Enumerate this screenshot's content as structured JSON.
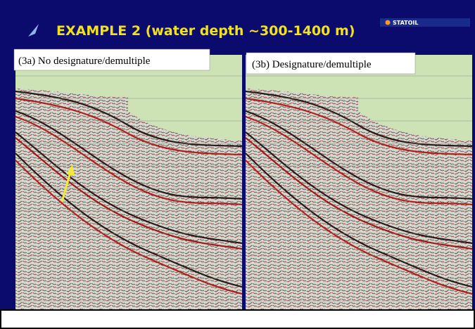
{
  "header": {
    "title": "EXAMPLE 2 (water depth ~300-1400 m)",
    "logo": "STATOIL"
  },
  "panels": [
    {
      "label": "(3a) No designature/demultiple"
    },
    {
      "label": "(3b) Designature/demultiple"
    }
  ]
}
